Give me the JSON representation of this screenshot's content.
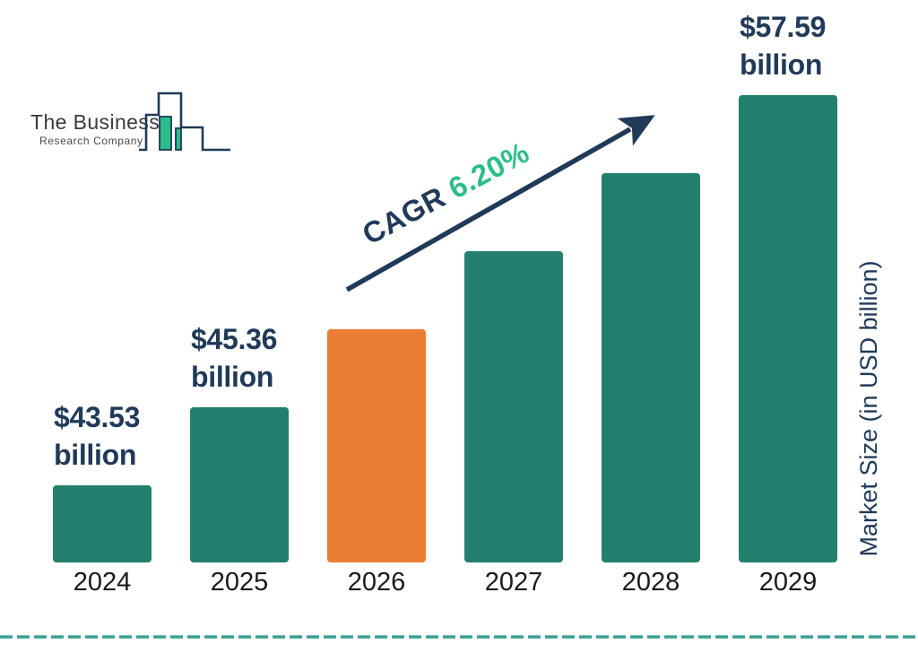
{
  "brand": {
    "name_line1": "The Business",
    "name_line2": "Research Company"
  },
  "cagr": {
    "label": "CAGR",
    "value": "6.20%"
  },
  "axis": {
    "y_label": "Market Size (in USD billion)"
  },
  "chart_data": {
    "type": "bar",
    "categories": [
      "2024",
      "2025",
      "2026",
      "2027",
      "2028",
      "2029"
    ],
    "values": [
      43.53,
      45.36,
      48.17,
      51.16,
      54.33,
      57.59
    ],
    "values_estimated": [
      "2026",
      "2027",
      "2028"
    ],
    "unit": "USD billion",
    "ylabel": "Market Size (in USD billion)",
    "highlight_category": "2026",
    "cagr_annotation": "CAGR 6.20%",
    "legend": false,
    "grid": false,
    "bar_labels": [
      {
        "category": "2024",
        "line1": "$43.53",
        "line2": "billion"
      },
      {
        "category": "2025",
        "line1": "$45.36",
        "line2": "billion"
      },
      {
        "category": "2029",
        "line1": "$57.59",
        "line2": "billion"
      }
    ]
  },
  "colors": {
    "teal": "#23806E",
    "orange": "#EB7E34",
    "navy": "#203A58",
    "green": "#2DBE87",
    "dash_line": "#3AA096",
    "logo_green": "#2BBD8C"
  }
}
